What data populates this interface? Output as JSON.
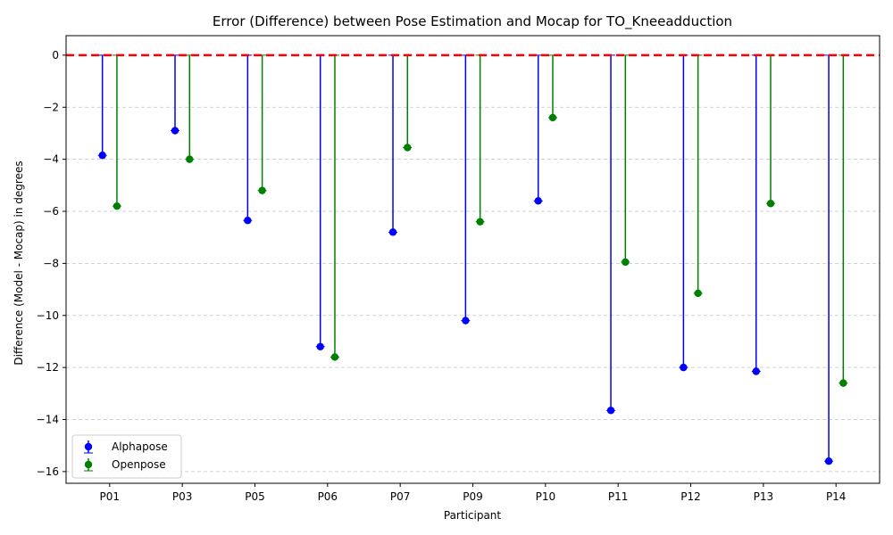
{
  "chart_data": {
    "type": "scatter",
    "title": "Error (Difference) between Pose Estimation and Mocap for TO_Kneeadduction",
    "xlabel": "Participant",
    "ylabel": "Difference (Model - Mocap) in degrees",
    "categories": [
      "P01",
      "P03",
      "P05",
      "P06",
      "P07",
      "P09",
      "P10",
      "P11",
      "P12",
      "P13",
      "P14"
    ],
    "series": [
      {
        "name": "Alphapose",
        "color": "#0000ff",
        "values": [
          -3.85,
          -2.9,
          -6.35,
          -11.2,
          -6.8,
          -10.2,
          -5.6,
          -13.65,
          -12.0,
          -12.15,
          -15.6
        ]
      },
      {
        "name": "Openpose",
        "color": "#008000",
        "values": [
          -5.8,
          -4.0,
          -5.2,
          -11.6,
          -3.55,
          -6.4,
          -2.4,
          -7.95,
          -9.15,
          -5.7,
          -12.6
        ]
      }
    ],
    "yticks": [
      0,
      -2,
      -4,
      -6,
      -8,
      -10,
      -12,
      -14,
      -16
    ],
    "ylim": [
      -16.45,
      0.75
    ],
    "reference_line": {
      "y": 0,
      "color": "#ff0000",
      "style": "dashed"
    },
    "grid": "y-axis dashed",
    "legend_position": "lower-left",
    "marker_style": "stem line from 0 with error-bar caps"
  }
}
